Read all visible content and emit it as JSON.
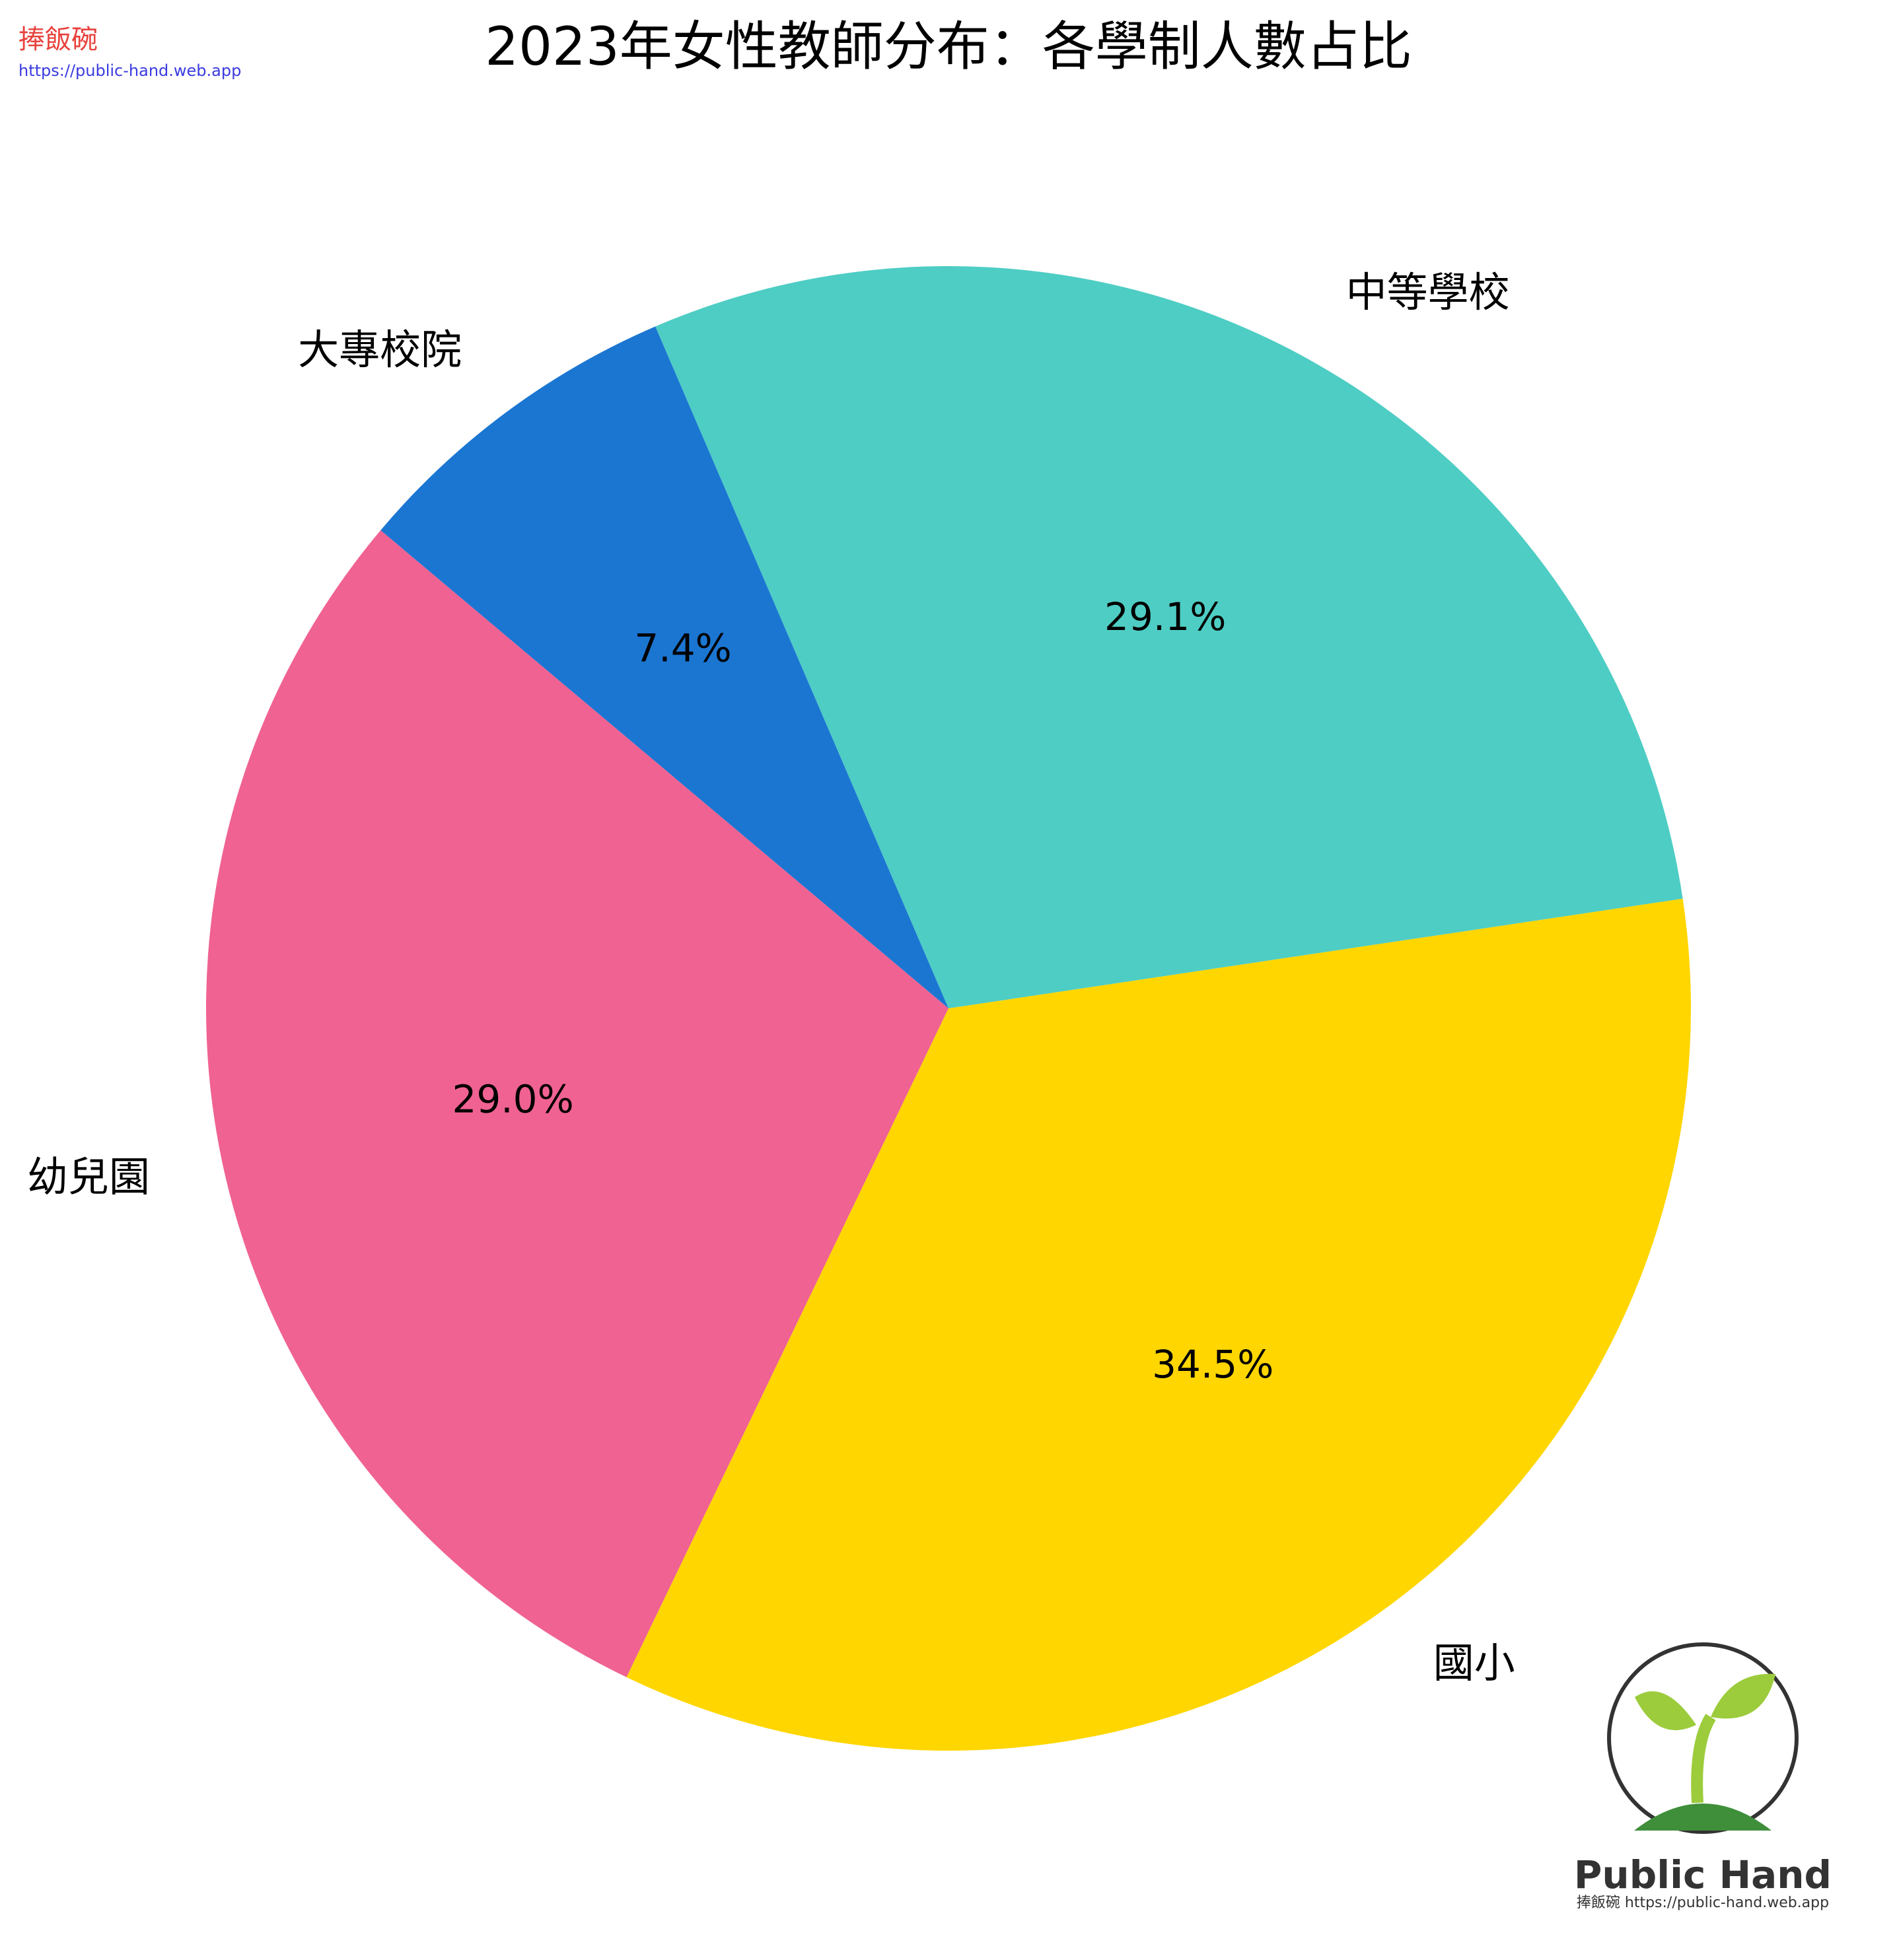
{
  "chart_data": {
    "type": "pie",
    "title": "2023年女性教師分布：各學制人數占比",
    "categories": [
      "中等學校",
      "大專校院",
      "幼兒園",
      "國小"
    ],
    "values": [
      29.1,
      7.4,
      29.0,
      34.5
    ],
    "value_labels": [
      "29.1%",
      "7.4%",
      "29.0%",
      "34.5%"
    ],
    "colors": [
      "#4ecdc4",
      "#1b76d2",
      "#f06292",
      "#ffd600"
    ]
  },
  "watermark": {
    "name": "捧飯碗",
    "url": "https://public-hand.web.app"
  },
  "logo": {
    "title": "Public Hand",
    "subtitle": "捧飯碗 https://public-hand.web.app"
  }
}
